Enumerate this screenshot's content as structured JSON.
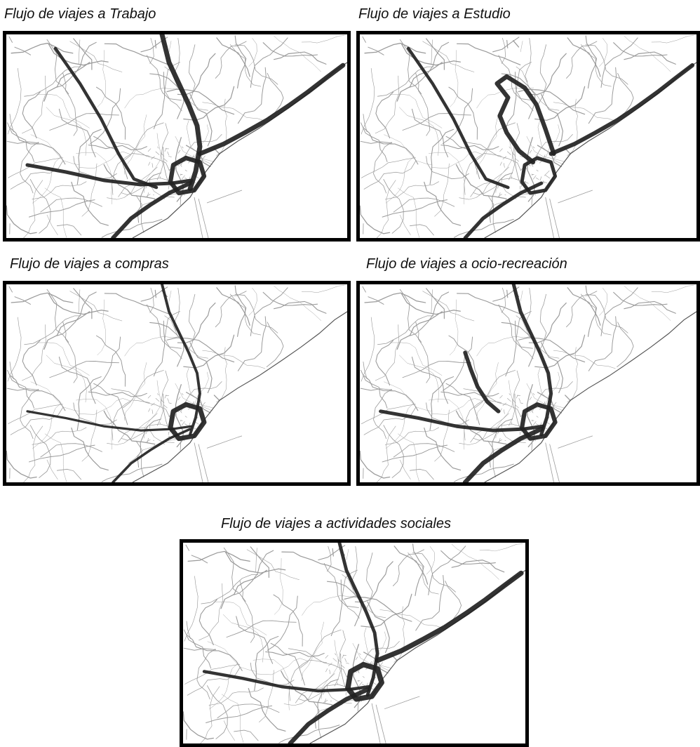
{
  "panels": [
    {
      "id": "trabajo",
      "title": "Flujo de viajes a Trabajo",
      "flows": [
        {
          "corridor": "north-trunk",
          "intensity": 0.9
        },
        {
          "corridor": "coast-north",
          "intensity": 0.85
        },
        {
          "corridor": "southwest",
          "intensity": 0.7
        },
        {
          "corridor": "west-central",
          "intensity": 0.6
        },
        {
          "corridor": "northwest",
          "intensity": 0.5
        },
        {
          "corridor": "center",
          "intensity": 0.8
        }
      ]
    },
    {
      "id": "estudio",
      "title": "Flujo de viajes a Estudio",
      "flows": [
        {
          "corridor": "loop-north",
          "intensity": 0.8
        },
        {
          "corridor": "coast-north",
          "intensity": 0.75
        },
        {
          "corridor": "southwest",
          "intensity": 0.6
        },
        {
          "corridor": "northwest",
          "intensity": 0.5
        },
        {
          "corridor": "center",
          "intensity": 0.6
        }
      ]
    },
    {
      "id": "compras",
      "title": "Flujo de viajes a compras",
      "flows": [
        {
          "corridor": "center",
          "intensity": 0.9
        },
        {
          "corridor": "north-trunk",
          "intensity": 0.4
        },
        {
          "corridor": "southwest",
          "intensity": 0.35
        },
        {
          "corridor": "west-central",
          "intensity": 0.3
        }
      ]
    },
    {
      "id": "ocio",
      "title": "Flujo de viajes a ocio-recreación",
      "flows": [
        {
          "corridor": "north-trunk",
          "intensity": 0.6
        },
        {
          "corridor": "mountain-spur",
          "intensity": 0.7
        },
        {
          "corridor": "southwest",
          "intensity": 0.85
        },
        {
          "corridor": "west-central",
          "intensity": 0.6
        },
        {
          "corridor": "center",
          "intensity": 0.8
        }
      ]
    },
    {
      "id": "social",
      "title": "Flujo de viajes a actividades sociales",
      "flows": [
        {
          "corridor": "coast-north",
          "intensity": 0.95
        },
        {
          "corridor": "center",
          "intensity": 1.0
        },
        {
          "corridor": "southwest",
          "intensity": 0.8
        },
        {
          "corridor": "north-trunk",
          "intensity": 0.55
        },
        {
          "corridor": "west-central",
          "intensity": 0.5
        }
      ]
    }
  ],
  "colors": {
    "border": "#000000",
    "flow": "#222222",
    "network": "#9a9a9a",
    "sea": "#ffffff"
  }
}
